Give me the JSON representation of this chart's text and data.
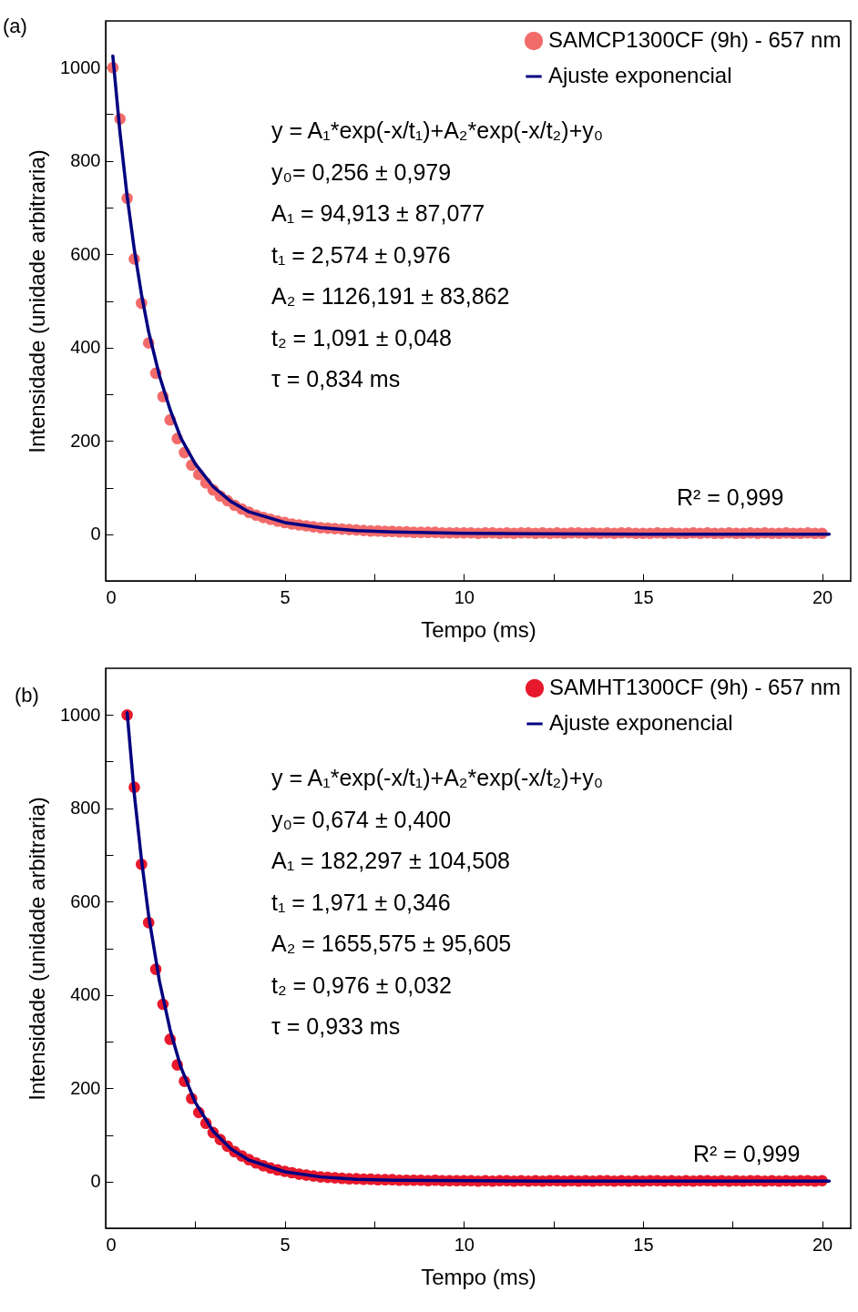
{
  "chart_data": [
    {
      "type": "scatter",
      "xlabel": "Tempo (ms)",
      "ylabel": "Intensidade (unidade arbitraria)",
      "xlim": [
        0,
        20.8
      ],
      "ylim": [
        -100,
        1100
      ],
      "xticks": [
        0,
        {
          "value": 2.5,
          "label": null
        },
        5,
        {
          "value": 7.5,
          "label": null
        },
        10,
        {
          "value": 12.5,
          "label": null
        },
        15,
        {
          "value": 17.5,
          "label": null
        },
        20
      ],
      "yticks": [
        {
          "value": -100,
          "label": null
        },
        0,
        {
          "value": 100,
          "label": null
        },
        200,
        {
          "value": 300,
          "label": null
        },
        400,
        {
          "value": 500,
          "label": null
        },
        600,
        {
          "value": 700,
          "label": null
        },
        800,
        {
          "value": 900,
          "label": null
        },
        1000
      ],
      "legend": "top right",
      "grid": false,
      "annotations": [
        "(a)",
        "y = A₁*exp(-x/t₁)+A₂*exp(-x/t₂)+y₀",
        "y₀= 0,256 ± 0,979",
        "A₁ = 94,913 ± 87,077",
        "t₁ = 2,574 ± 0,976",
        "A₂ = 1126,191 ± 83,862",
        "t₂ = 1,091 ± 0,048",
        "τ = 0,834 ms",
        "R² = 0,999"
      ],
      "series": [
        {
          "name": "SAMCP1300CF (9h) - 657 nm",
          "type": "scatter",
          "marker": "circle",
          "color": "#f26b6b",
          "x": [
            0.2,
            0.4,
            0.6,
            0.8,
            1.0,
            1.2,
            1.4,
            1.6,
            1.8,
            2.0,
            2.2,
            2.4,
            2.6,
            2.8,
            3.0,
            3.2,
            3.4,
            3.6,
            3.8,
            4.0,
            4.2,
            4.4,
            4.6,
            4.8,
            5.0,
            5.2,
            5.4,
            5.6,
            5.8,
            6.0,
            6.2,
            6.4,
            6.6,
            6.8,
            7.0,
            7.2,
            7.4,
            7.6,
            7.8,
            8.0,
            8.2,
            8.4,
            8.6,
            8.8,
            9.0,
            9.2,
            9.4,
            9.6,
            9.8,
            10.0,
            10.2,
            10.4,
            10.6,
            10.8,
            11.0,
            11.2,
            11.4,
            11.6,
            11.8,
            12.0,
            12.2,
            12.4,
            12.6,
            12.8,
            13.0,
            13.2,
            13.4,
            13.6,
            13.8,
            14.0,
            14.2,
            14.4,
            14.6,
            14.8,
            15.0,
            15.2,
            15.4,
            15.6,
            15.8,
            16.0,
            16.2,
            16.4,
            16.6,
            16.8,
            17.0,
            17.2,
            17.4,
            17.6,
            17.8,
            18.0,
            18.2,
            18.4,
            18.6,
            18.8,
            19.0,
            19.2,
            19.4,
            19.6,
            19.8,
            20.0
          ],
          "values": [
            1000,
            890,
            720,
            590,
            495,
            410,
            345,
            295,
            245,
            205,
            175,
            148,
            128,
            110,
            95,
            82,
            72,
            62,
            54,
            47,
            41,
            36,
            32,
            28,
            25,
            22,
            20,
            18,
            16,
            14,
            13,
            12,
            11,
            10,
            9,
            8,
            7,
            7,
            6,
            6,
            5,
            5,
            4,
            4,
            4,
            4,
            3,
            3,
            3,
            3,
            3,
            2,
            3,
            3,
            2,
            3,
            2,
            3,
            3,
            2,
            3,
            2,
            3,
            2,
            3,
            3,
            2,
            3,
            2,
            3,
            2,
            3,
            3,
            2,
            2,
            2,
            3,
            2,
            3,
            2,
            2,
            3,
            2,
            3,
            2,
            2,
            3,
            2,
            2,
            3,
            2,
            3,
            2,
            2,
            3,
            2,
            2,
            3,
            2,
            2
          ]
        },
        {
          "name": "Ajuste exponencial",
          "type": "line",
          "line_style": "solid",
          "color": "#000080",
          "x": [
            0.2,
            0.4,
            0.6,
            0.8,
            1.0,
            1.2,
            1.5,
            1.8,
            2.1,
            2.5,
            3,
            3.5,
            4,
            5,
            6,
            7,
            8,
            10,
            12,
            15,
            20.2
          ],
          "values": [
            1025,
            861,
            724,
            610,
            514,
            434,
            340,
            267,
            206,
            151,
            102,
            70,
            48,
            25,
            14,
            8,
            5,
            2,
            1,
            0,
            0
          ]
        }
      ]
    },
    {
      "type": "scatter",
      "xlabel": "Tempo (ms)",
      "ylabel": "Intensidade (unidade arbitraria)",
      "xlim": [
        0,
        20.8
      ],
      "ylim": [
        -100,
        1100
      ],
      "xticks": [
        0,
        {
          "value": 2.5,
          "label": null
        },
        5,
        {
          "value": 7.5,
          "label": null
        },
        10,
        {
          "value": 12.5,
          "label": null
        },
        15,
        {
          "value": 17.5,
          "label": null
        },
        20
      ],
      "yticks": [
        {
          "value": -100,
          "label": null
        },
        0,
        {
          "value": 100,
          "label": null
        },
        200,
        {
          "value": 300,
          "label": null
        },
        400,
        {
          "value": 500,
          "label": null
        },
        600,
        {
          "value": 700,
          "label": null
        },
        800,
        {
          "value": 900,
          "label": null
        },
        1000
      ],
      "legend": "top right",
      "grid": false,
      "annotations": [
        "(b)",
        "y = A₁*exp(-x/t₁)+A₂*exp(-x/t₂)+y₀",
        "y₀= 0,674 ± 0,400",
        "A₁ = 182,297 ± 104,508",
        "t₁ = 1,971 ± 0,346",
        "A₂ = 1655,575 ± 95,605",
        "t₂ = 0,976 ± 0,032",
        "τ = 0,933 ms",
        "R² = 0,999"
      ],
      "series": [
        {
          "name": "SAMHT1300CF (9h) - 657 nm",
          "type": "scatter",
          "marker": "circle",
          "color": "#e8192c",
          "x": [
            0.6,
            0.8,
            1.0,
            1.2,
            1.4,
            1.6,
            1.8,
            2.0,
            2.2,
            2.4,
            2.6,
            2.8,
            3.0,
            3.2,
            3.4,
            3.6,
            3.8,
            4.0,
            4.2,
            4.4,
            4.6,
            4.8,
            5.0,
            5.2,
            5.4,
            5.6,
            5.8,
            6.0,
            6.2,
            6.4,
            6.6,
            6.8,
            7.0,
            7.2,
            7.4,
            7.6,
            7.8,
            8.0,
            8.2,
            8.4,
            8.6,
            8.8,
            9.0,
            9.2,
            9.4,
            9.6,
            9.8,
            10.0,
            10.2,
            10.4,
            10.6,
            10.8,
            11.0,
            11.2,
            11.4,
            11.6,
            11.8,
            12.0,
            12.2,
            12.4,
            12.6,
            12.8,
            13.0,
            13.2,
            13.4,
            13.6,
            13.8,
            14.0,
            14.2,
            14.4,
            14.6,
            14.8,
            15.0,
            15.2,
            15.4,
            15.6,
            15.8,
            16.0,
            16.2,
            16.4,
            16.6,
            16.8,
            17.0,
            17.2,
            17.4,
            17.6,
            17.8,
            18.0,
            18.2,
            18.4,
            18.6,
            18.8,
            19.0,
            19.2,
            19.4,
            19.6,
            19.8,
            20.0
          ],
          "values": [
            1000,
            845,
            680,
            555,
            455,
            380,
            305,
            250,
            215,
            178,
            148,
            125,
            105,
            90,
            76,
            64,
            55,
            47,
            40,
            34,
            29,
            25,
            22,
            19,
            16,
            14,
            12,
            10,
            9,
            8,
            7,
            6,
            6,
            5,
            5,
            4,
            4,
            4,
            3,
            3,
            3,
            3,
            2,
            3,
            2,
            2,
            2,
            2,
            2,
            1,
            2,
            1,
            2,
            2,
            1,
            2,
            1,
            2,
            1,
            2,
            2,
            1,
            2,
            1,
            2,
            1,
            2,
            2,
            1,
            2,
            1,
            2,
            1,
            2,
            2,
            1,
            2,
            1,
            2,
            1,
            2,
            2,
            1,
            2,
            1,
            2,
            1,
            2,
            2,
            1,
            2,
            1,
            2,
            1,
            2,
            2,
            1,
            2
          ]
        },
        {
          "name": "Ajuste exponencial",
          "type": "line",
          "line_style": "solid",
          "color": "#000080",
          "x": [
            0.6,
            0.8,
            1.0,
            1.2,
            1.5,
            1.8,
            2.1,
            2.5,
            3.0,
            3.5,
            4.0,
            5.0,
            6.0,
            7.0,
            8.0,
            10,
            12,
            15,
            20.2
          ],
          "values": [
            1005,
            830,
            690,
            570,
            430,
            325,
            245,
            170,
            108,
            70,
            46,
            21,
            10,
            5,
            3,
            2,
            1,
            1,
            1
          ]
        }
      ]
    }
  ]
}
